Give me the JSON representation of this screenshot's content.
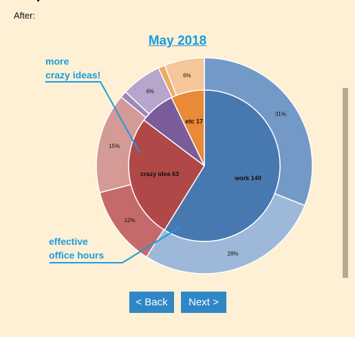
{
  "header": {
    "after_label": "After:"
  },
  "callouts": {
    "crazy_ideas": [
      "more",
      "crazy ideas!"
    ],
    "office_hours": [
      "effective",
      "office hours"
    ]
  },
  "chart_data": {
    "type": "pie",
    "title": "May 2018",
    "inner": [
      {
        "label": "work 140",
        "value": 140,
        "color": "#4878b0"
      },
      {
        "label": "crazy idea 63",
        "value": 63,
        "color": "#b04848"
      },
      {
        "label": "",
        "value": 18,
        "color": "#7a5c9a"
      },
      {
        "label": "etc 17",
        "value": 17,
        "color": "#e88a38"
      }
    ],
    "outer": [
      {
        "label": "31%",
        "value": 31,
        "color": "#7399c7"
      },
      {
        "label": "28%",
        "value": 28,
        "color": "#9db8d9"
      },
      {
        "label": "12%",
        "value": 12,
        "color": "#c46a6a"
      },
      {
        "label": "15%",
        "value": 15,
        "color": "#d49a96"
      },
      {
        "label": "",
        "value": 1,
        "color": "#9c89bc"
      },
      {
        "label": "6%",
        "value": 6,
        "color": "#b7a5cb"
      },
      {
        "label": "",
        "value": 1,
        "color": "#f0aa68"
      },
      {
        "label": "6%",
        "value": 6,
        "color": "#f5c69a"
      }
    ]
  },
  "nav": {
    "back_label": "< Back",
    "next_label": "Next >"
  },
  "colors": {
    "accent": "#1a9be0",
    "button": "#2f87c6",
    "background": "#fdf0d4"
  }
}
